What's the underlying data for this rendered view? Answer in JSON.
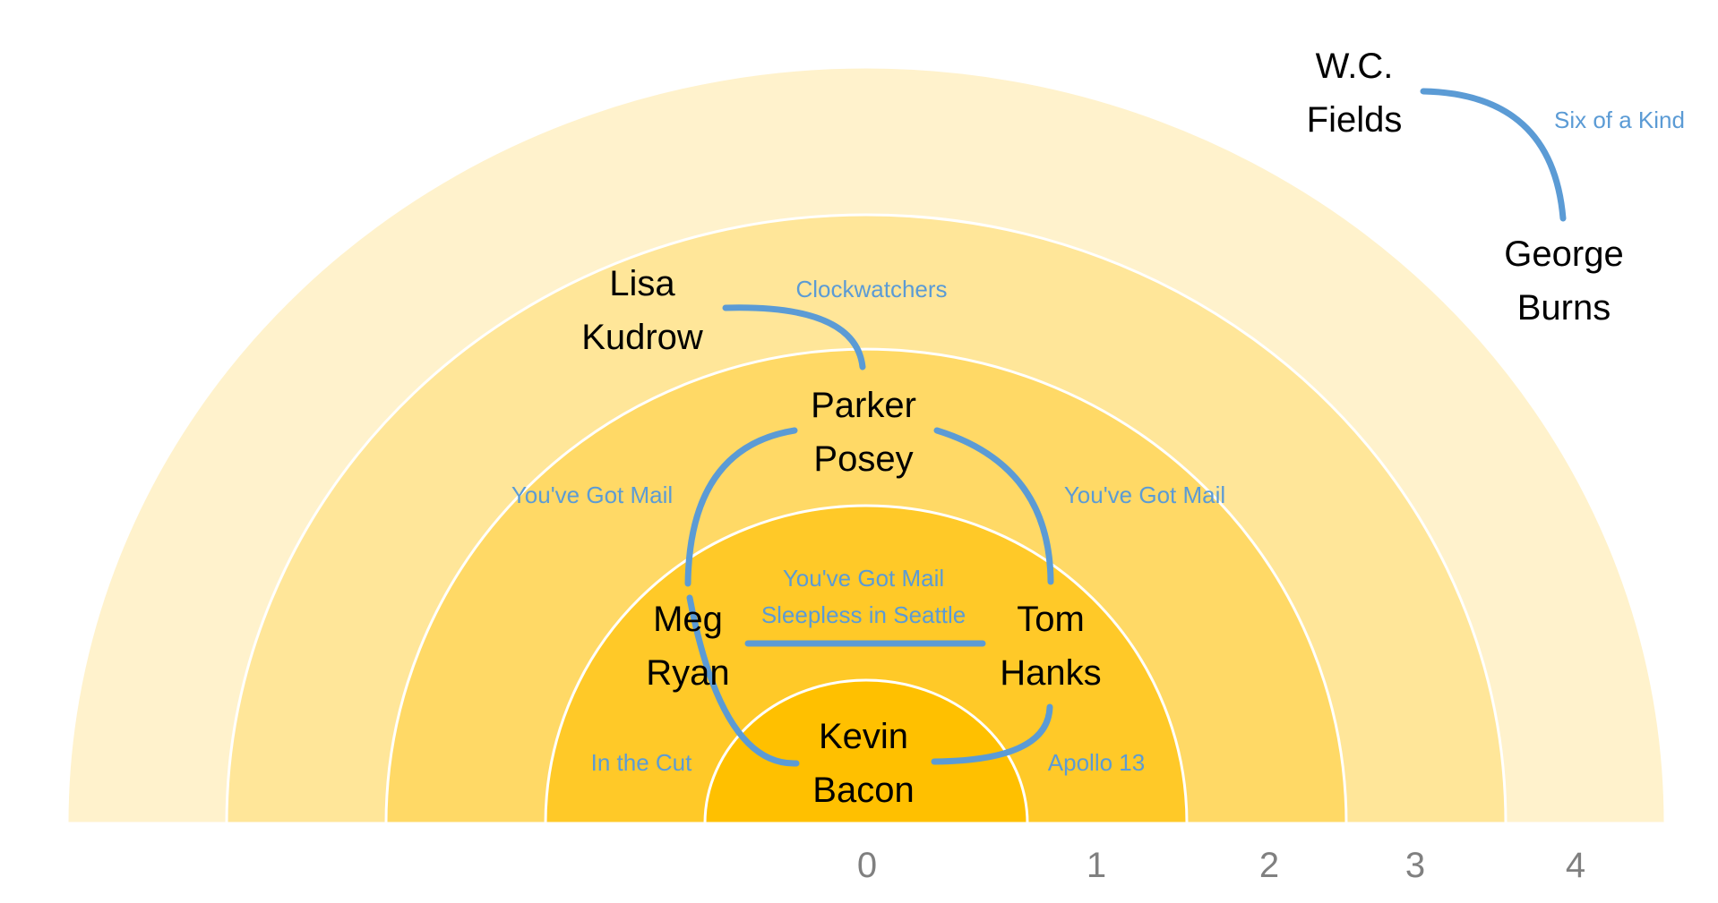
{
  "colors": {
    "ring_0": "#FFC000",
    "ring_1": "#FFC928",
    "ring_2": "#FFD966",
    "ring_3": "#FFE699",
    "ring_4": "#FFF2CC",
    "edge": "#5B9BD5",
    "movie_text": "#5B9BD5",
    "tick_text": "#808080",
    "ring_border": "#FFFFFF"
  },
  "axis": {
    "ticks": [
      "0",
      "1",
      "2",
      "3",
      "4"
    ]
  },
  "actors": {
    "kevin_bacon": [
      "Kevin",
      "Bacon"
    ],
    "meg_ryan": [
      "Meg",
      "Ryan"
    ],
    "tom_hanks": [
      "Tom",
      "Hanks"
    ],
    "parker_posey": [
      "Parker",
      "Posey"
    ],
    "lisa_kudrow": [
      "Lisa",
      "Kudrow"
    ],
    "wc_fields": [
      "W.C.",
      "Fields"
    ],
    "george_burns": [
      "George",
      "Burns"
    ]
  },
  "movies": {
    "in_the_cut": "In the Cut",
    "apollo_13": "Apollo 13",
    "meg_tom_1": "You've Got Mail",
    "meg_tom_2": "Sleepless in Seattle",
    "meg_parker": "You've Got Mail",
    "tom_parker": "You've Got Mail",
    "clockwatchers": "Clockwatchers",
    "six_of_a_kind": "Six of a Kind"
  }
}
